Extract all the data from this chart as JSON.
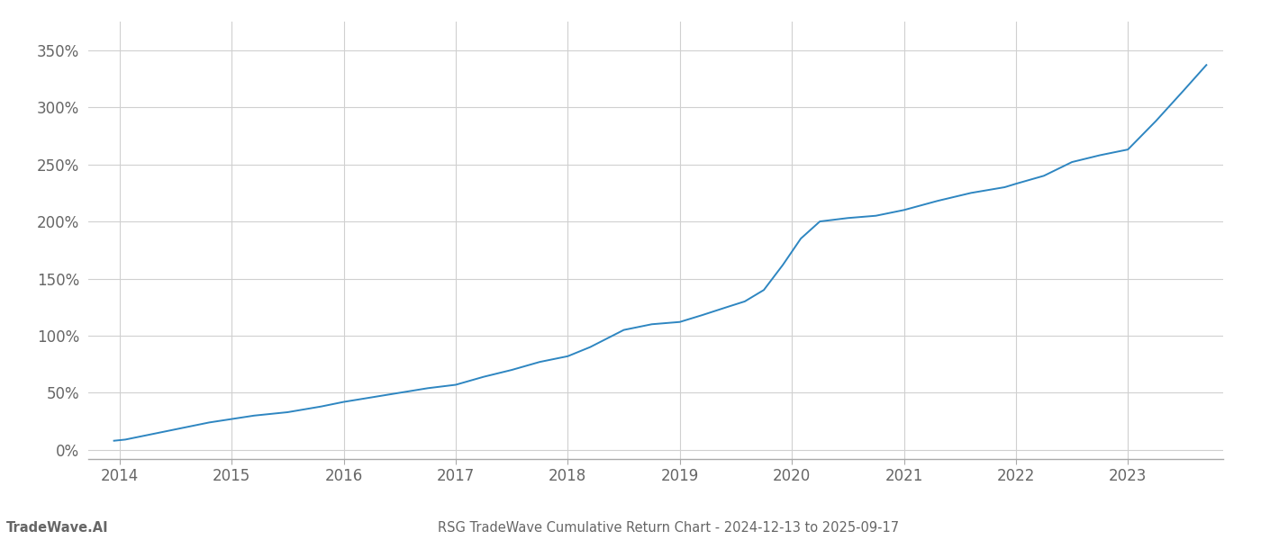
{
  "title_bottom": "RSG TradeWave Cumulative Return Chart - 2024-12-13 to 2025-09-17",
  "watermark": "TradeWave.AI",
  "line_color": "#2e86c1",
  "background_color": "#ffffff",
  "grid_color": "#d0d0d0",
  "x_years": [
    2014,
    2015,
    2016,
    2017,
    2018,
    2019,
    2020,
    2021,
    2022,
    2023
  ],
  "x_data": [
    2013.95,
    2014.05,
    2014.2,
    2014.4,
    2014.6,
    2014.8,
    2015.0,
    2015.2,
    2015.5,
    2015.8,
    2016.0,
    2016.25,
    2016.5,
    2016.75,
    2017.0,
    2017.25,
    2017.5,
    2017.75,
    2018.0,
    2018.2,
    2018.5,
    2018.75,
    2019.0,
    2019.2,
    2019.42,
    2019.58,
    2019.75,
    2019.92,
    2020.08,
    2020.25,
    2020.5,
    2020.75,
    2021.0,
    2021.3,
    2021.6,
    2021.9,
    2022.0,
    2022.25,
    2022.5,
    2022.75,
    2023.0,
    2023.25,
    2023.5,
    2023.7
  ],
  "y_data": [
    8,
    9,
    12,
    16,
    20,
    24,
    27,
    30,
    33,
    38,
    42,
    46,
    50,
    54,
    57,
    64,
    70,
    77,
    82,
    90,
    105,
    110,
    112,
    118,
    125,
    130,
    140,
    162,
    185,
    200,
    203,
    205,
    210,
    218,
    225,
    230,
    233,
    240,
    252,
    258,
    263,
    288,
    315,
    337
  ],
  "yticks": [
    0,
    50,
    100,
    150,
    200,
    250,
    300,
    350
  ],
  "ylim": [
    -8,
    375
  ],
  "xlim": [
    2013.72,
    2023.85
  ],
  "tick_color": "#666666",
  "title_color": "#666666",
  "watermark_color": "#666666",
  "title_fontsize": 10.5,
  "watermark_fontsize": 10.5,
  "tick_fontsize": 12
}
